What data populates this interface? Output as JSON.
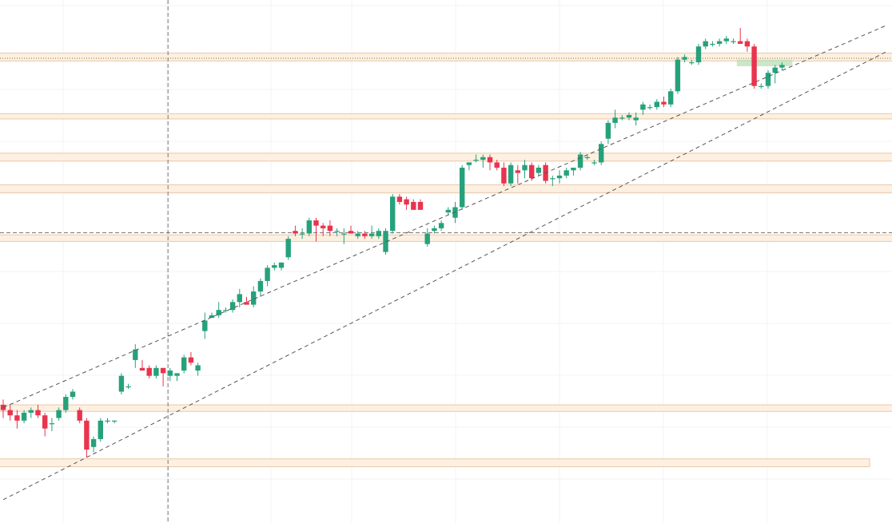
{
  "chart_data": {
    "type": "candlestick",
    "title": "",
    "xlabel": "",
    "ylabel": "",
    "grid": true,
    "colors": {
      "up": "#26a17b",
      "down": "#e8344e",
      "zone_fill": "#fdf0e1",
      "zone_stroke": "#e8c9a8",
      "trend_line": "#555555",
      "target_box": "#b9dfb6",
      "crosshair": "#777777"
    },
    "candles": [
      {
        "o": 50,
        "h": 52,
        "l": 45,
        "c": 48
      },
      {
        "o": 48,
        "h": 50,
        "l": 44,
        "c": 46
      },
      {
        "o": 46,
        "h": 48,
        "l": 41,
        "c": 44
      },
      {
        "o": 44,
        "h": 48,
        "l": 43,
        "c": 47
      },
      {
        "o": 47,
        "h": 49,
        "l": 45,
        "c": 48
      },
      {
        "o": 48,
        "h": 50,
        "l": 45,
        "c": 46
      },
      {
        "o": 46,
        "h": 47,
        "l": 38,
        "c": 41
      },
      {
        "o": 43,
        "h": 45,
        "l": 40,
        "c": 43
      },
      {
        "o": 45,
        "h": 49,
        "l": 44,
        "c": 48
      },
      {
        "o": 48,
        "h": 54,
        "l": 47,
        "c": 53
      },
      {
        "o": 53,
        "h": 56,
        "l": 52,
        "c": 55
      },
      {
        "o": 48,
        "h": 49,
        "l": 43,
        "c": 44
      },
      {
        "o": 44,
        "h": 45,
        "l": 30,
        "c": 33
      },
      {
        "o": 34,
        "h": 38,
        "l": 32,
        "c": 37
      },
      {
        "o": 37,
        "h": 45,
        "l": 36,
        "c": 44
      },
      {
        "o": 44,
        "h": 45,
        "l": 43,
        "c": 44
      },
      {
        "o": 44,
        "h": 44,
        "l": 43,
        "c": 44
      },
      {
        "o": 55,
        "h": 62,
        "l": 54,
        "c": 61
      },
      {
        "o": 57,
        "h": 58,
        "l": 56,
        "c": 57
      },
      {
        "o": 67,
        "h": 73,
        "l": 64,
        "c": 71
      },
      {
        "o": 64,
        "h": 67,
        "l": 63,
        "c": 63
      },
      {
        "o": 64,
        "h": 65,
        "l": 60,
        "c": 61
      },
      {
        "o": 61,
        "h": 65,
        "l": 60,
        "c": 64
      },
      {
        "o": 64,
        "h": 64,
        "l": 57,
        "c": 62
      },
      {
        "o": 61,
        "h": 64,
        "l": 59,
        "c": 63
      },
      {
        "o": 61,
        "h": 62,
        "l": 59,
        "c": 62
      },
      {
        "o": 63,
        "h": 69,
        "l": 62,
        "c": 68
      },
      {
        "o": 68,
        "h": 70,
        "l": 65,
        "c": 66
      },
      {
        "o": 63,
        "h": 66,
        "l": 61,
        "c": 65
      },
      {
        "o": 78,
        "h": 85,
        "l": 75,
        "c": 82
      },
      {
        "o": 83,
        "h": 85,
        "l": 83,
        "c": 84
      },
      {
        "o": 84,
        "h": 89,
        "l": 83,
        "c": 86
      },
      {
        "o": 86,
        "h": 87,
        "l": 85,
        "c": 86
      },
      {
        "o": 86,
        "h": 90,
        "l": 85,
        "c": 89
      },
      {
        "o": 89,
        "h": 94,
        "l": 87,
        "c": 92
      },
      {
        "o": 89,
        "h": 91,
        "l": 88,
        "c": 88
      },
      {
        "o": 88,
        "h": 95,
        "l": 87,
        "c": 93
      },
      {
        "o": 93,
        "h": 98,
        "l": 91,
        "c": 97
      },
      {
        "o": 97,
        "h": 103,
        "l": 95,
        "c": 102
      },
      {
        "o": 102,
        "h": 104,
        "l": 101,
        "c": 103
      },
      {
        "o": 102,
        "h": 104,
        "l": 101,
        "c": 104
      },
      {
        "o": 106,
        "h": 114,
        "l": 105,
        "c": 113
      },
      {
        "o": 116,
        "h": 118,
        "l": 114,
        "c": 115
      },
      {
        "o": 115,
        "h": 117,
        "l": 113,
        "c": 115
      },
      {
        "o": 115,
        "h": 121,
        "l": 114,
        "c": 120
      },
      {
        "o": 120,
        "h": 121,
        "l": 112,
        "c": 118
      },
      {
        "o": 118,
        "h": 119,
        "l": 114,
        "c": 117
      },
      {
        "o": 118,
        "h": 120,
        "l": 114,
        "c": 116
      },
      {
        "o": 116,
        "h": 117,
        "l": 114,
        "c": 116
      },
      {
        "o": 115,
        "h": 117,
        "l": 111,
        "c": 115
      },
      {
        "o": 116,
        "h": 118,
        "l": 115,
        "c": 115
      },
      {
        "o": 114,
        "h": 116,
        "l": 113,
        "c": 115
      },
      {
        "o": 115,
        "h": 116,
        "l": 113,
        "c": 114
      },
      {
        "o": 114,
        "h": 118,
        "l": 113,
        "c": 115
      },
      {
        "o": 114,
        "h": 117,
        "l": 113,
        "c": 116
      },
      {
        "o": 108,
        "h": 117,
        "l": 107,
        "c": 116
      },
      {
        "o": 116,
        "h": 130,
        "l": 115,
        "c": 129
      },
      {
        "o": 129,
        "h": 130,
        "l": 126,
        "c": 127
      },
      {
        "o": 128,
        "h": 129,
        "l": 124,
        "c": 126
      },
      {
        "o": 127,
        "h": 128,
        "l": 124,
        "c": 124
      },
      {
        "o": 127,
        "h": 128,
        "l": 124,
        "c": 124
      },
      {
        "o": 111,
        "h": 117,
        "l": 110,
        "c": 115
      },
      {
        "o": 116,
        "h": 118,
        "l": 115,
        "c": 117
      },
      {
        "o": 117,
        "h": 120,
        "l": 116,
        "c": 119
      },
      {
        "o": 123,
        "h": 125,
        "l": 122,
        "c": 124
      },
      {
        "o": 121,
        "h": 127,
        "l": 119,
        "c": 125
      },
      {
        "o": 125,
        "h": 141,
        "l": 124,
        "c": 140
      },
      {
        "o": 141,
        "h": 142,
        "l": 139,
        "c": 142
      },
      {
        "o": 143,
        "h": 145,
        "l": 142,
        "c": 143
      },
      {
        "o": 143,
        "h": 145,
        "l": 140,
        "c": 144
      },
      {
        "o": 144,
        "h": 145,
        "l": 139,
        "c": 142
      },
      {
        "o": 142,
        "h": 143,
        "l": 139,
        "c": 140
      },
      {
        "o": 140,
        "h": 142,
        "l": 133,
        "c": 134
      },
      {
        "o": 134,
        "h": 142,
        "l": 133,
        "c": 141
      },
      {
        "o": 139,
        "h": 141,
        "l": 134,
        "c": 138
      },
      {
        "o": 139,
        "h": 143,
        "l": 136,
        "c": 141
      },
      {
        "o": 141,
        "h": 142,
        "l": 135,
        "c": 136
      },
      {
        "o": 138,
        "h": 141,
        "l": 137,
        "c": 140
      },
      {
        "o": 141,
        "h": 142,
        "l": 134,
        "c": 135
      },
      {
        "o": 136,
        "h": 137,
        "l": 133,
        "c": 136
      },
      {
        "o": 136,
        "h": 139,
        "l": 134,
        "c": 137
      },
      {
        "o": 137,
        "h": 140,
        "l": 136,
        "c": 139
      },
      {
        "o": 139,
        "h": 140,
        "l": 137,
        "c": 140
      },
      {
        "o": 140,
        "h": 146,
        "l": 139,
        "c": 145
      },
      {
        "o": 144,
        "h": 145,
        "l": 143,
        "c": 144
      },
      {
        "o": 142,
        "h": 143,
        "l": 141,
        "c": 142
      },
      {
        "o": 142,
        "h": 150,
        "l": 141,
        "c": 149
      },
      {
        "o": 151,
        "h": 158,
        "l": 149,
        "c": 157
      },
      {
        "o": 157,
        "h": 162,
        "l": 155,
        "c": 159
      },
      {
        "o": 159,
        "h": 160,
        "l": 158,
        "c": 159
      },
      {
        "o": 159,
        "h": 161,
        "l": 158,
        "c": 160
      },
      {
        "o": 158,
        "h": 161,
        "l": 156,
        "c": 159
      },
      {
        "o": 162,
        "h": 165,
        "l": 160,
        "c": 164
      },
      {
        "o": 163,
        "h": 164,
        "l": 162,
        "c": 163
      },
      {
        "o": 163,
        "h": 166,
        "l": 162,
        "c": 165
      },
      {
        "o": 165,
        "h": 167,
        "l": 163,
        "c": 164
      },
      {
        "o": 164,
        "h": 170,
        "l": 163,
        "c": 169
      },
      {
        "o": 169,
        "h": 182,
        "l": 168,
        "c": 181
      },
      {
        "o": 181,
        "h": 183,
        "l": 180,
        "c": 182
      },
      {
        "o": 180,
        "h": 181,
        "l": 179,
        "c": 180
      },
      {
        "o": 180,
        "h": 187,
        "l": 179,
        "c": 186
      },
      {
        "o": 186,
        "h": 189,
        "l": 185,
        "c": 188
      },
      {
        "o": 187,
        "h": 188,
        "l": 186,
        "c": 187
      },
      {
        "o": 187,
        "h": 189,
        "l": 186,
        "c": 188
      },
      {
        "o": 188,
        "h": 190,
        "l": 187,
        "c": 189
      },
      {
        "o": 188,
        "h": 189,
        "l": 187,
        "c": 188
      },
      {
        "o": 188,
        "h": 193,
        "l": 187,
        "c": 187
      },
      {
        "o": 188,
        "h": 189,
        "l": 184,
        "c": 186
      },
      {
        "o": 186,
        "h": 187,
        "l": 170,
        "c": 171
      },
      {
        "o": 171,
        "h": 172,
        "l": 170,
        "c": 171
      },
      {
        "o": 171,
        "h": 177,
        "l": 170,
        "c": 176
      },
      {
        "o": 176,
        "h": 179,
        "l": 172,
        "c": 178
      },
      {
        "o": 178,
        "h": 180,
        "l": 177,
        "c": 179
      }
    ],
    "zones": [
      {
        "low": 180.5,
        "high": 183.5
      },
      {
        "low": 158.5,
        "high": 160.5
      },
      {
        "low": 142.5,
        "high": 145.5
      },
      {
        "low": 130.5,
        "high": 133.5
      },
      {
        "low": 112.0,
        "high": 114.5
      },
      {
        "low": 47.5,
        "high": 50.0
      },
      {
        "low": 26.5,
        "high": 29.5
      }
    ],
    "channel_lines": [
      {
        "x1": 0,
        "y1": 49,
        "x2": 127,
        "y2": 194
      },
      {
        "x1": 0,
        "y1": 14,
        "x2": 127,
        "y2": 184
      }
    ],
    "price_levels": [
      181.5,
      115.3
    ],
    "target_box": {
      "x_start": 105.5,
      "x_end": 113.5,
      "low": 178.5,
      "high": 181
    },
    "crosshair_index": 23
  }
}
